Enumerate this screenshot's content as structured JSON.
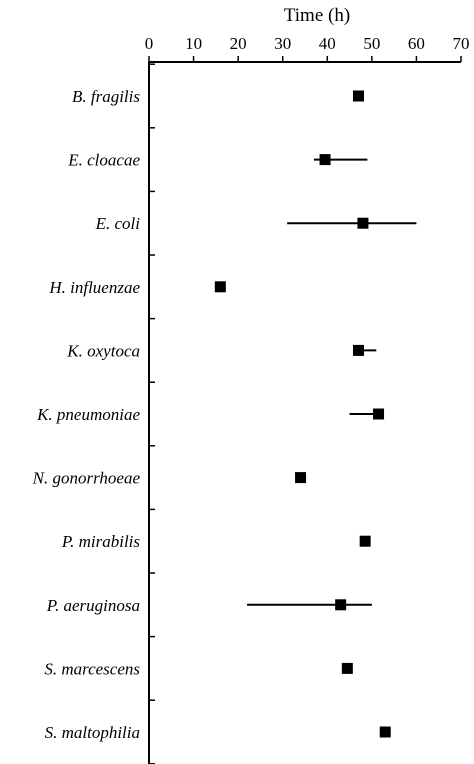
{
  "chart_data": {
    "type": "scatter",
    "title": "",
    "xlabel": "Time (h)",
    "ylabel": "",
    "xlim": [
      0,
      70
    ],
    "x_ticks": [
      0,
      10,
      20,
      30,
      40,
      50,
      60,
      70
    ],
    "x_axis_position": "top",
    "grid": false,
    "legend": "none",
    "marker": "square",
    "marker_color": "#000000",
    "categories": [
      "B. fragilis",
      "E. cloacae",
      "E. coli",
      "H. influenzae",
      "K. oxytoca",
      "K. pneumoniae",
      "N. gonorrhoeae",
      "P. mirabilis",
      "P. aeruginosa",
      "S. marcescens",
      "S. maltophilia"
    ],
    "values": [
      47,
      39.5,
      48,
      16,
      47,
      51.5,
      34,
      48.5,
      43,
      44.5,
      53
    ],
    "error_low": [
      null,
      37,
      31,
      null,
      null,
      45,
      null,
      null,
      22,
      null,
      null
    ],
    "error_high": [
      null,
      49,
      60,
      null,
      51,
      null,
      null,
      null,
      50,
      null,
      null
    ]
  }
}
